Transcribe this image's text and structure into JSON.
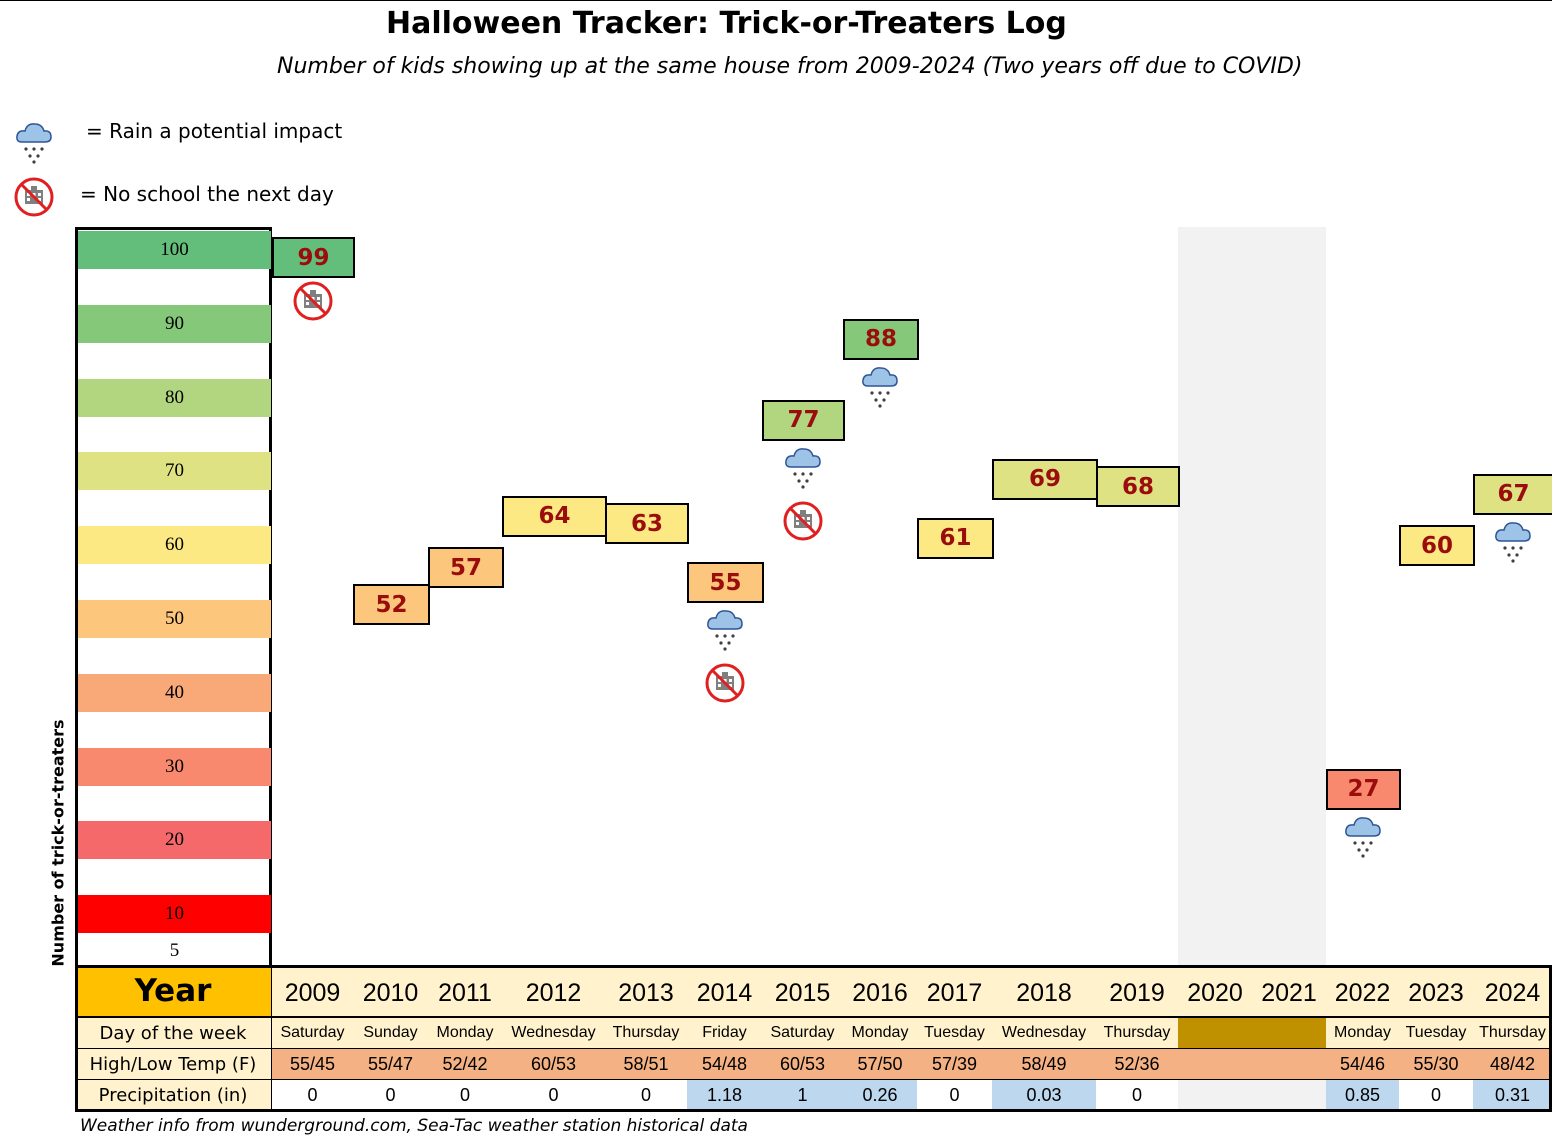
{
  "title": "Halloween Tracker: Trick-or-Treaters Log",
  "subtitle": "Number of kids showing up at the same house from 2009-2024 (Two years off due to COVID)",
  "legend": [
    {
      "icon": "rain-cloud-icon",
      "text": "= Rain a potential impact"
    },
    {
      "icon": "no-school-icon",
      "text": "= No school the next day"
    }
  ],
  "colors": {
    "v100": "#63be7b",
    "v90": "#85c879",
    "v80": "#b2d57f",
    "v70": "#dee283",
    "v60": "#fde983",
    "v50": "#fcc77c",
    "v40": "#f9a877",
    "v30": "#f8896f",
    "v20": "#f5696b",
    "v10": "#ff0000",
    "year_header": "#ffc000",
    "table_cell": "#fff2cc",
    "day_row": "#bf9000",
    "temp_row": "#f4b183",
    "precip_wet": "#bdd7ee",
    "precip_dry": "#ffffff",
    "covid": "#f2f2f2",
    "value_text": "#9b0d0d"
  },
  "chart_data": {
    "type": "table",
    "title": "Halloween Tracker: Trick-or-Treaters Log",
    "subtitle": "Number of kids showing up at the same house from 2009-2024 (Two years off due to COVID)",
    "ylabel": "Number of trick-or-treaters",
    "scale_labels": [
      "100",
      "90",
      "80",
      "70",
      "60",
      "50",
      "40",
      "30",
      "20",
      "10",
      "5"
    ],
    "ylim": [
      5,
      100
    ],
    "row_labels": {
      "year": "Year",
      "day": "Day of the week",
      "temp": "High/Low Temp (F)",
      "precip": "Precipitation (in)"
    },
    "years": [
      {
        "year": "2009",
        "count": 99,
        "day": "Saturday",
        "temp": "55/45",
        "precip": "0",
        "rain": false,
        "no_school": true
      },
      {
        "year": "2010",
        "count": 52,
        "day": "Sunday",
        "temp": "55/47",
        "precip": "0",
        "rain": false,
        "no_school": false
      },
      {
        "year": "2011",
        "count": 57,
        "day": "Monday",
        "temp": "52/42",
        "precip": "0",
        "rain": false,
        "no_school": false
      },
      {
        "year": "2012",
        "count": 64,
        "day": "Wednesday",
        "temp": "60/53",
        "precip": "0",
        "rain": false,
        "no_school": false
      },
      {
        "year": "2013",
        "count": 63,
        "day": "Thursday",
        "temp": "58/51",
        "precip": "0",
        "rain": false,
        "no_school": false
      },
      {
        "year": "2014",
        "count": 55,
        "day": "Friday",
        "temp": "54/48",
        "precip": "1.18",
        "rain": true,
        "no_school": true
      },
      {
        "year": "2015",
        "count": 77,
        "day": "Saturday",
        "temp": "60/53",
        "precip": "1",
        "rain": true,
        "no_school": true
      },
      {
        "year": "2016",
        "count": 88,
        "day": "Monday",
        "temp": "57/50",
        "precip": "0.26",
        "rain": true,
        "no_school": false
      },
      {
        "year": "2017",
        "count": 61,
        "day": "Tuesday",
        "temp": "57/39",
        "precip": "0",
        "rain": false,
        "no_school": false
      },
      {
        "year": "2018",
        "count": 69,
        "day": "Wednesday",
        "temp": "58/49",
        "precip": "0.03",
        "rain": false,
        "no_school": false
      },
      {
        "year": "2019",
        "count": 68,
        "day": "Thursday",
        "temp": "52/36",
        "precip": "0",
        "rain": false,
        "no_school": false
      },
      {
        "year": "2020",
        "count": null,
        "day": "",
        "temp": "",
        "precip": "",
        "rain": false,
        "no_school": false
      },
      {
        "year": "2021",
        "count": null,
        "day": "",
        "temp": "",
        "precip": "",
        "rain": false,
        "no_school": false
      },
      {
        "year": "2022",
        "count": 27,
        "day": "Monday",
        "temp": "54/46",
        "precip": "0.85",
        "rain": true,
        "no_school": false
      },
      {
        "year": "2023",
        "count": 60,
        "day": "Tuesday",
        "temp": "55/30",
        "precip": "0",
        "rain": false,
        "no_school": false
      },
      {
        "year": "2024",
        "count": 67,
        "day": "Thursday",
        "temp": "48/42",
        "precip": "0.31",
        "rain": true,
        "no_school": false
      }
    ]
  },
  "source_note": "Weather info from wunderground.com, Sea-Tac weather station historical data"
}
